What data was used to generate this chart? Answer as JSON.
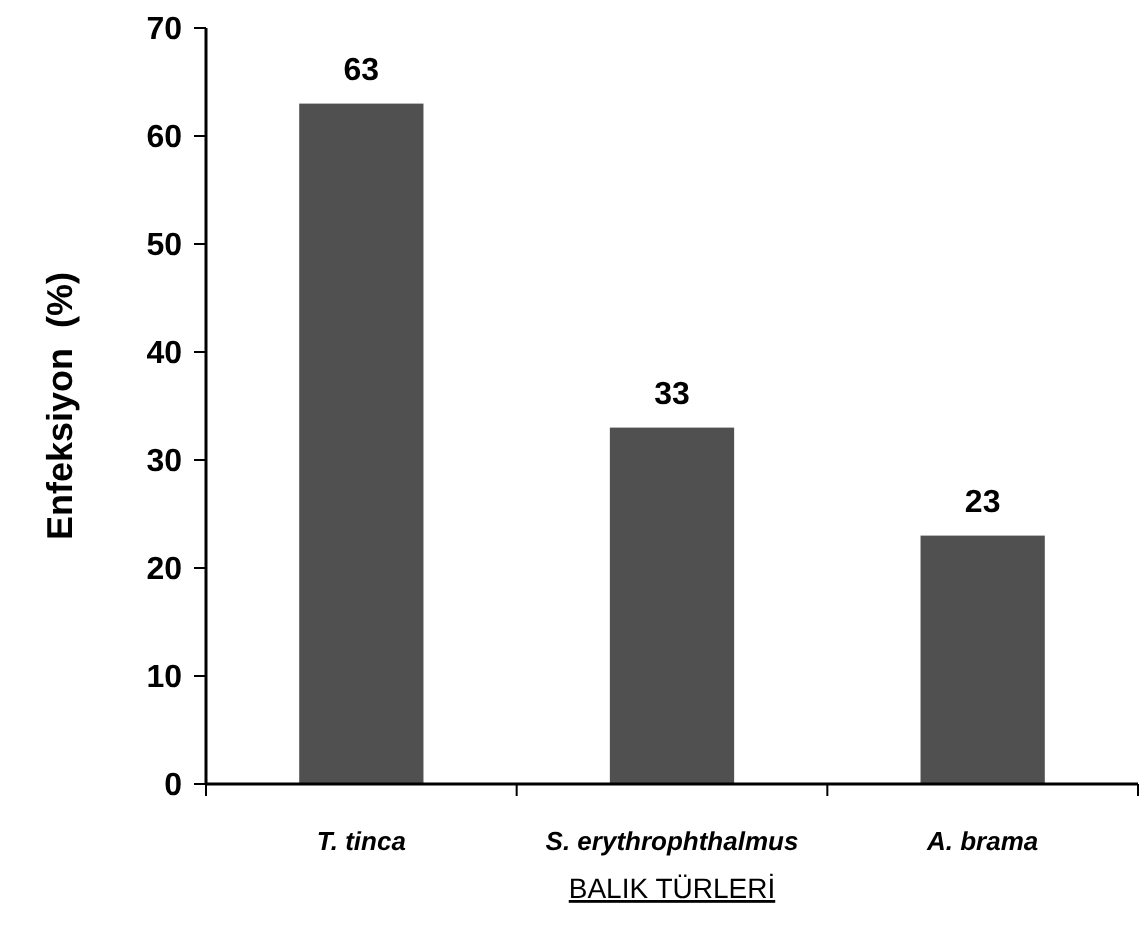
{
  "chart_data": {
    "type": "bar",
    "xlabel": "BALIK TÜRLERİ",
    "ylabel": "Enfeksiyon  (%)",
    "categories": [
      "T. tinca",
      "S. erythrophthalmus",
      "A. brama"
    ],
    "values": [
      63,
      33,
      23
    ],
    "color": "#505050",
    "ylim": [
      0,
      70
    ],
    "yticks": [
      0,
      10,
      20,
      30,
      40,
      50,
      60,
      70
    ],
    "data_labels": true,
    "grid": false
  }
}
